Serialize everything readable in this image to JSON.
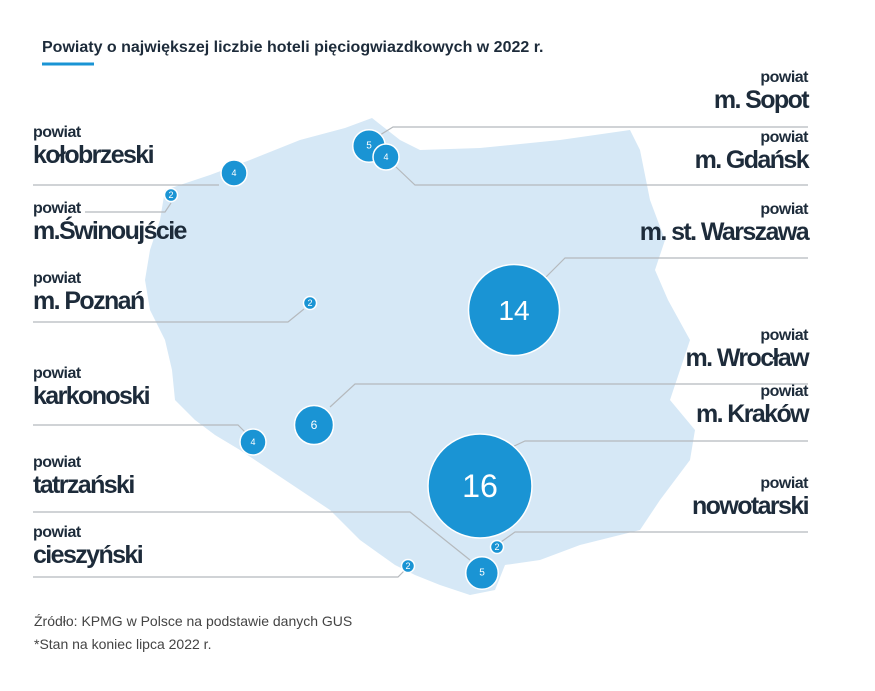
{
  "title": "Powiaty o największej liczbie hoteli pięciogwiazdkowych w 2022 r.",
  "regions": [
    {
      "prefix": "powiat",
      "name": "kołobrzeski",
      "value": 4
    },
    {
      "prefix": "powiat",
      "name": "m.Świnoujście",
      "value": 2
    },
    {
      "prefix": "powiat",
      "name": "m. Poznań",
      "value": 2
    },
    {
      "prefix": "powiat",
      "name": "karkonoski",
      "value": 4
    },
    {
      "prefix": "powiat",
      "name": "tatrzański",
      "value": 5
    },
    {
      "prefix": "powiat",
      "name": "cieszyński",
      "value": 2
    },
    {
      "prefix": "powiat",
      "name": "m. Sopot",
      "value": 5
    },
    {
      "prefix": "powiat",
      "name": "m. Gdańsk",
      "value": 4
    },
    {
      "prefix": "powiat",
      "name": "m. st. Warszawa",
      "value": 14
    },
    {
      "prefix": "powiat",
      "name": "m. Wrocław",
      "value": 6
    },
    {
      "prefix": "powiat",
      "name": "m. Kraków",
      "value": 16
    },
    {
      "prefix": "powiat",
      "name": "nowotarski",
      "value": 2
    }
  ],
  "source": "Źródło: KPMG w Polsce na podstawie danych GUS",
  "note": "*Stan na koniec lipca 2022 r."
}
